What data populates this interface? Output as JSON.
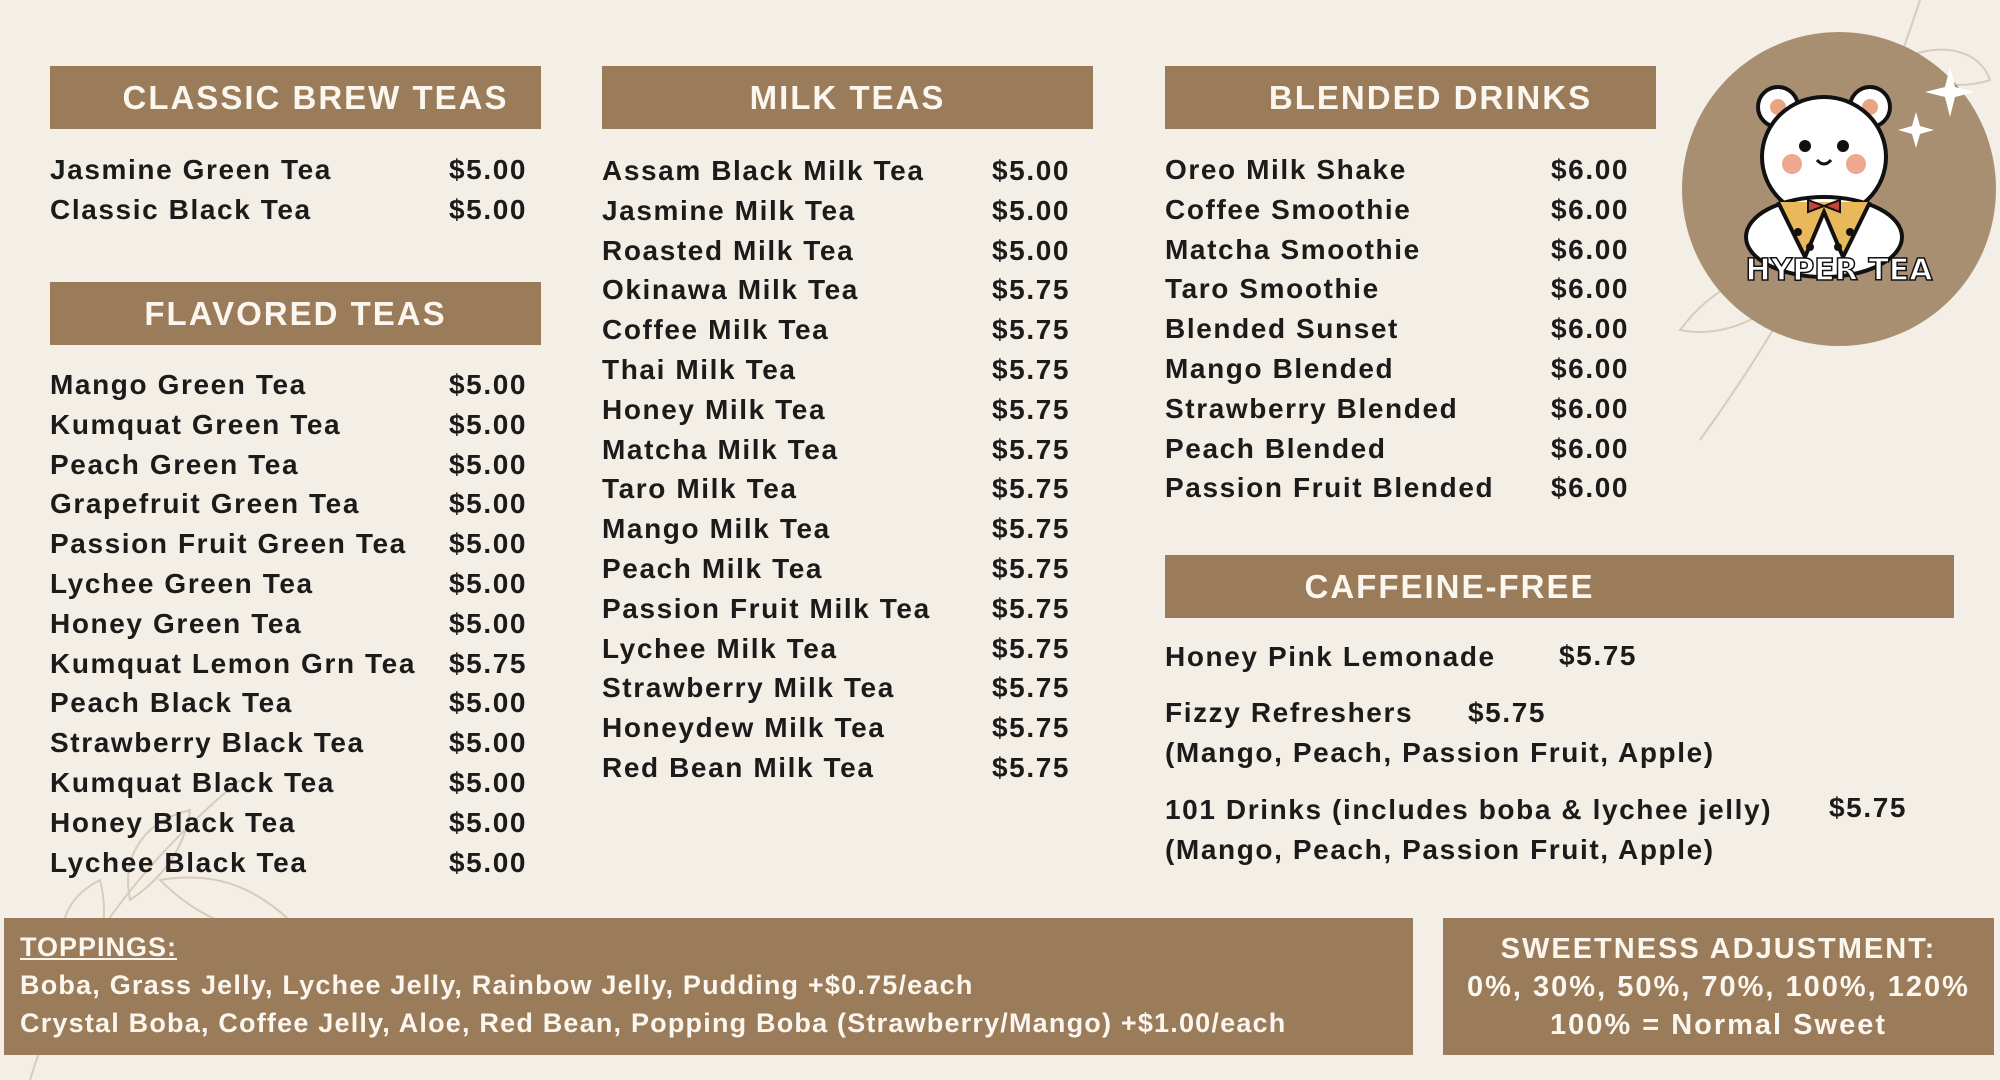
{
  "colors": {
    "background": "#f4efe6",
    "header": "#9a7b5a",
    "header_text": "#fbf6ee",
    "text": "#1b1b1b",
    "logo_circle": "#a98f72"
  },
  "logo": {
    "text": "HYPER TEA",
    "icon": "bear-holding-boba-icon"
  },
  "classic": {
    "title": "CLASSIC BREW TEAS",
    "items": [
      {
        "name": "Jasmine Green Tea",
        "price": "$5.00"
      },
      {
        "name": "Classic Black Tea",
        "price": "$5.00"
      }
    ]
  },
  "flavored": {
    "title": "FLAVORED TEAS",
    "items": [
      {
        "name": "Mango Green Tea",
        "price": "$5.00"
      },
      {
        "name": "Kumquat Green Tea",
        "price": "$5.00"
      },
      {
        "name": "Peach Green Tea",
        "price": "$5.00"
      },
      {
        "name": "Grapefruit Green Tea",
        "price": "$5.00"
      },
      {
        "name": "Passion Fruit Green Tea",
        "price": "$5.00"
      },
      {
        "name": "Lychee Green Tea",
        "price": "$5.00"
      },
      {
        "name": "Honey Green Tea",
        "price": "$5.00"
      },
      {
        "name": "Kumquat Lemon Grn Tea",
        "price": "$5.75"
      },
      {
        "name": "Peach Black Tea",
        "price": "$5.00"
      },
      {
        "name": "Strawberry Black Tea",
        "price": "$5.00"
      },
      {
        "name": "Kumquat Black Tea",
        "price": "$5.00"
      },
      {
        "name": "Honey Black Tea",
        "price": "$5.00"
      },
      {
        "name": "Lychee Black Tea",
        "price": "$5.00"
      }
    ]
  },
  "milk": {
    "title": "MILK TEAS",
    "items": [
      {
        "name": "Assam Black Milk Tea",
        "price": "$5.00"
      },
      {
        "name": "Jasmine Milk Tea",
        "price": "$5.00"
      },
      {
        "name": "Roasted Milk Tea",
        "price": "$5.00"
      },
      {
        "name": "Okinawa Milk Tea",
        "price": "$5.75"
      },
      {
        "name": "Coffee Milk Tea",
        "price": "$5.75"
      },
      {
        "name": "Thai Milk Tea",
        "price": "$5.75"
      },
      {
        "name": "Honey Milk Tea",
        "price": "$5.75"
      },
      {
        "name": "Matcha Milk Tea",
        "price": "$5.75"
      },
      {
        "name": "Taro Milk Tea",
        "price": "$5.75"
      },
      {
        "name": "Mango Milk Tea",
        "price": "$5.75"
      },
      {
        "name": "Peach Milk Tea",
        "price": "$5.75"
      },
      {
        "name": "Passion Fruit Milk Tea",
        "price": "$5.75"
      },
      {
        "name": "Lychee Milk Tea",
        "price": "$5.75"
      },
      {
        "name": "Strawberry Milk Tea",
        "price": "$5.75"
      },
      {
        "name": "Honeydew Milk Tea",
        "price": "$5.75"
      },
      {
        "name": "Red Bean Milk Tea",
        "price": "$5.75"
      }
    ]
  },
  "blended": {
    "title": "BLENDED DRINKS",
    "items": [
      {
        "name": "Oreo Milk Shake",
        "price": "$6.00"
      },
      {
        "name": "Coffee Smoothie",
        "price": "$6.00"
      },
      {
        "name": "Matcha Smoothie",
        "price": "$6.00"
      },
      {
        "name": "Taro Smoothie",
        "price": "$6.00"
      },
      {
        "name": "Blended Sunset",
        "price": "$6.00"
      },
      {
        "name": "Mango Blended",
        "price": "$6.00"
      },
      {
        "name": "Strawberry Blended",
        "price": "$6.00"
      },
      {
        "name": "Peach Blended",
        "price": "$6.00"
      },
      {
        "name": "Passion Fruit Blended",
        "price": "$6.00"
      }
    ]
  },
  "caffeine_free": {
    "title": "CAFFEINE-FREE",
    "items": [
      {
        "name": "Honey Pink Lemonade",
        "price": "$5.75"
      },
      {
        "name": "Fizzy Refreshers",
        "price": "$5.75",
        "note": "(Mango, Peach, Passion Fruit, Apple)"
      },
      {
        "name": "101 Drinks (includes boba & lychee jelly)",
        "price": "$5.75",
        "note": "(Mango, Peach, Passion Fruit, Apple)"
      }
    ]
  },
  "toppings": {
    "title": "TOPPINGS:",
    "lines": [
      "Boba, Grass Jelly, Lychee Jelly, Rainbow Jelly, Pudding  +$0.75/each",
      "Crystal Boba, Coffee Jelly, Aloe, Red Bean, Popping Boba (Strawberry/Mango) +$1.00/each"
    ]
  },
  "sweetness": {
    "title": "SWEETNESS ADJUSTMENT:",
    "levels": "0%, 30%, 50%, 70%, 100%, 120%",
    "note": "100% = Normal Sweet"
  }
}
